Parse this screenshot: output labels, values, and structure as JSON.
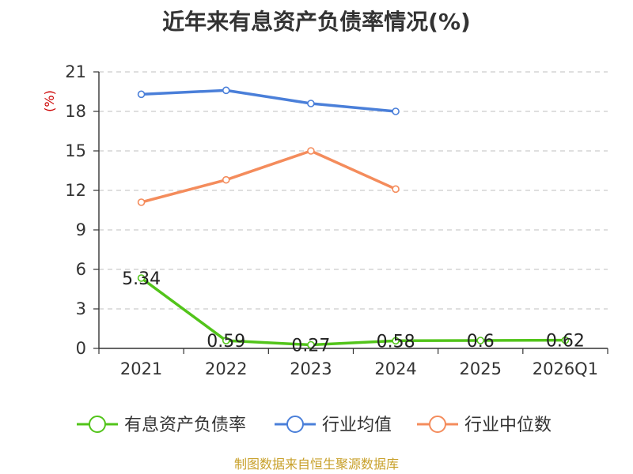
{
  "chart_data": {
    "type": "line",
    "title": "近年来有息资产负债率情况(%)",
    "ylabel": "(%)",
    "categories": [
      "2021",
      "2022",
      "2023",
      "2024",
      "2025",
      "2026Q1"
    ],
    "ylim": [
      0,
      21
    ],
    "yticks": [
      0,
      3,
      6,
      9,
      12,
      15,
      18,
      21
    ],
    "grid": true,
    "legend_position": "bottom",
    "series": [
      {
        "name": "有息资产负债率",
        "color": "#52c41a",
        "values": [
          5.34,
          0.59,
          0.27,
          0.58,
          0.6,
          0.62
        ],
        "data_labels": [
          "5.34",
          "0.59",
          "0.27",
          "0.58",
          "0.6",
          "0.62"
        ]
      },
      {
        "name": "行业均值",
        "color": "#4a7fd9",
        "values": [
          19.3,
          19.6,
          18.6,
          18.0,
          null,
          null
        ]
      },
      {
        "name": "行业中位数",
        "color": "#f48c5c",
        "values": [
          11.1,
          12.8,
          15.0,
          12.1,
          null,
          null
        ]
      }
    ]
  },
  "footer": "制图数据来自恒生聚源数据库"
}
